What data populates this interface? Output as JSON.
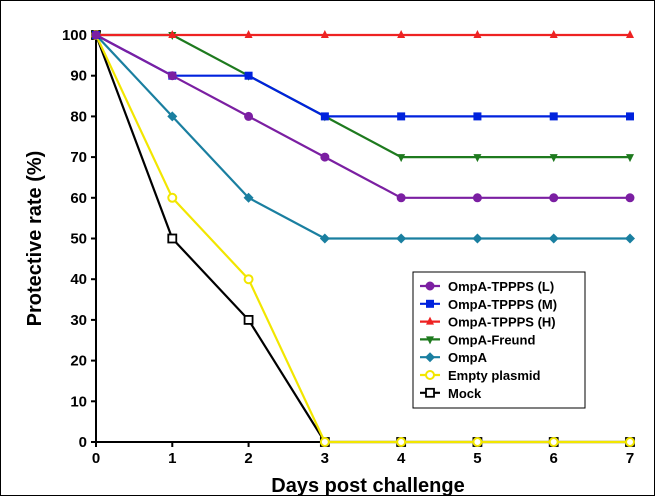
{
  "chart_data": {
    "type": "line",
    "xlabel": "Days post challenge",
    "ylabel": "Protective rate (%)",
    "xlim": [
      0,
      7
    ],
    "ylim": [
      0,
      100
    ],
    "x_ticks": [
      0,
      1,
      2,
      3,
      4,
      5,
      6,
      7
    ],
    "y_ticks": [
      0,
      10,
      20,
      30,
      40,
      50,
      60,
      70,
      80,
      90,
      100
    ],
    "legend_position": "lower-right",
    "grid": false,
    "x": [
      0,
      1,
      2,
      3,
      4,
      5,
      6,
      7
    ],
    "series": [
      {
        "name": "OmpA-TPPPS (L)",
        "color": "#7B1FA2",
        "marker": "circle",
        "values": [
          100,
          90,
          80,
          70,
          60,
          60,
          60,
          60
        ]
      },
      {
        "name": "OmpA-TPPPS (M)",
        "color": "#0022DD",
        "marker": "square",
        "values": [
          100,
          90,
          90,
          80,
          80,
          80,
          80,
          80
        ]
      },
      {
        "name": "OmpA-TPPPS (H)",
        "color": "#EE2222",
        "marker": "triangle-up",
        "values": [
          100,
          100,
          100,
          100,
          100,
          100,
          100,
          100
        ]
      },
      {
        "name": "OmpA-Freund",
        "color": "#1E7A1E",
        "marker": "triangle-down",
        "values": [
          100,
          100,
          90,
          80,
          70,
          70,
          70,
          70
        ]
      },
      {
        "name": "OmpA",
        "color": "#1A7FA0",
        "marker": "diamond",
        "values": [
          100,
          80,
          60,
          50,
          50,
          50,
          50,
          50
        ]
      },
      {
        "name": "Empty plasmid",
        "color": "#F2E600",
        "marker": "open-circle",
        "values": [
          100,
          60,
          40,
          0,
          0,
          0,
          0,
          0
        ]
      },
      {
        "name": "Mock",
        "color": "#000000",
        "marker": "open-square",
        "values": [
          100,
          50,
          30,
          0,
          0,
          0,
          0,
          0
        ]
      }
    ]
  }
}
